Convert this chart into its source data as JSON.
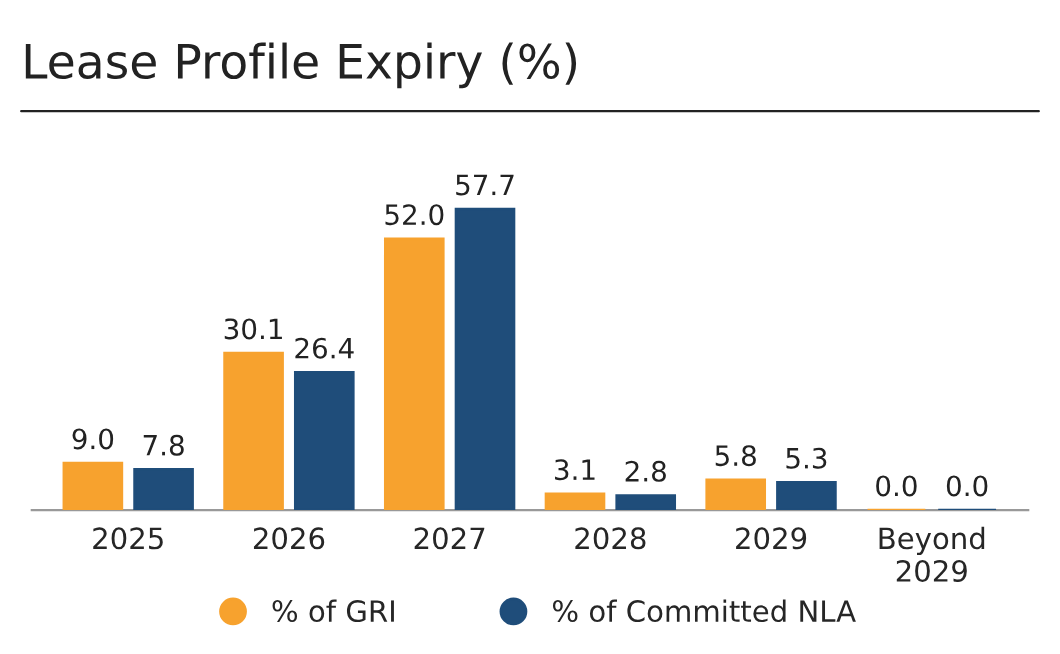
{
  "chart_data": {
    "type": "bar",
    "title": "Lease Profile Expiry (%)",
    "categories": [
      "2025",
      "2026",
      "2027",
      "2028",
      "2029",
      "Beyond\n2029"
    ],
    "series": [
      {
        "name": "% of GRI",
        "color": "#f7a22e",
        "values": [
          9.0,
          30.1,
          52.0,
          3.1,
          5.8,
          0.0
        ],
        "value_labels": [
          "9.0",
          "30.1",
          "52.0",
          "3.1",
          "5.8",
          "0.0"
        ]
      },
      {
        "name": "% of Committed NLA",
        "color": "#1f4d7a",
        "values": [
          7.8,
          26.4,
          57.7,
          2.8,
          5.3,
          0.0
        ],
        "value_labels": [
          "7.8",
          "26.4",
          "57.7",
          "2.8",
          "5.3",
          "0.0"
        ]
      }
    ],
    "legend": "bottom",
    "grid": false
  }
}
